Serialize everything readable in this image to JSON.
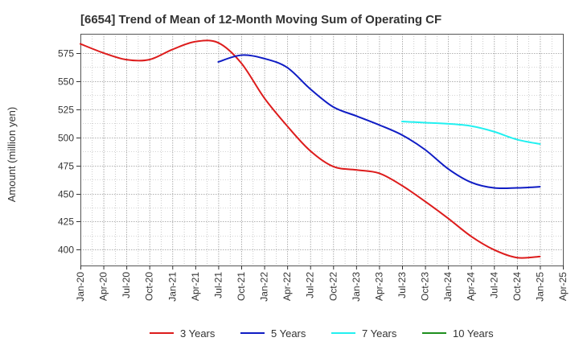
{
  "chart_data": {
    "type": "line",
    "title": "[6654]  Trend of Mean of 12-Month Moving Sum of Operating CF",
    "xlabel": "",
    "ylabel": "Amount (million yen)",
    "ylim": [
      386,
      592
    ],
    "yticks": [
      400,
      425,
      450,
      475,
      500,
      525,
      550,
      575
    ],
    "grid": true,
    "legend_position": "bottom",
    "categories": [
      "Jan-20",
      "Apr-20",
      "Jul-20",
      "Oct-20",
      "Jan-21",
      "Apr-21",
      "Jul-21",
      "Oct-21",
      "Jan-22",
      "Apr-22",
      "Jul-22",
      "Oct-22",
      "Jan-23",
      "Apr-23",
      "Jul-23",
      "Oct-23",
      "Jan-24",
      "Apr-24",
      "Jul-24",
      "Oct-24",
      "Jan-25",
      "Apr-25"
    ],
    "series": [
      {
        "name": "3 Years",
        "color": "#dd1c1c",
        "values": [
          583,
          575,
          569,
          569,
          578,
          585,
          584,
          566,
          535,
          510,
          488,
          474,
          471,
          468,
          457,
          443,
          428,
          412,
          400,
          393,
          394,
          null
        ]
      },
      {
        "name": "5 Years",
        "color": "#0f1cc4",
        "values": [
          null,
          null,
          null,
          null,
          null,
          null,
          567,
          573,
          570,
          562,
          543,
          527,
          519,
          511,
          502,
          489,
          472,
          460,
          455,
          455,
          456,
          null
        ]
      },
      {
        "name": "7 Years",
        "color": "#22f0f0",
        "values": [
          null,
          null,
          null,
          null,
          null,
          null,
          null,
          null,
          null,
          null,
          null,
          null,
          null,
          null,
          514,
          513,
          512,
          510,
          505,
          498,
          494,
          null
        ]
      },
      {
        "name": "10 Years",
        "color": "#1e8f1e",
        "values": [
          null,
          null,
          null,
          null,
          null,
          null,
          null,
          null,
          null,
          null,
          null,
          null,
          null,
          null,
          null,
          null,
          null,
          null,
          null,
          null,
          null,
          null
        ]
      }
    ]
  }
}
